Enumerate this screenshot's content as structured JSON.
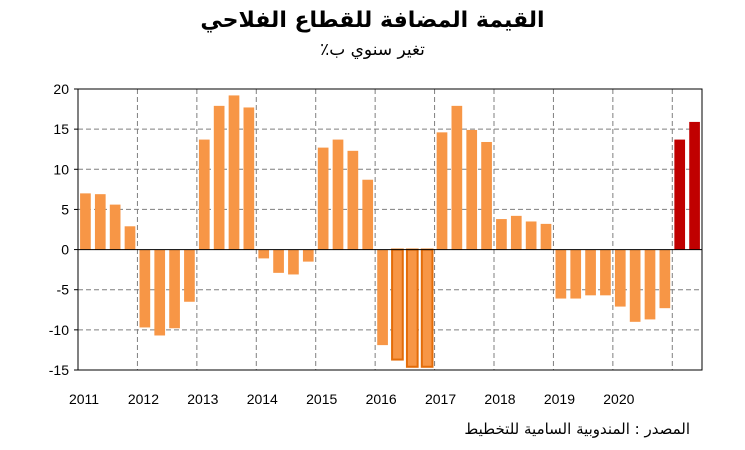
{
  "chart_data": {
    "type": "bar",
    "title": "القيمة المضافة للقطاع الفلاحي",
    "subtitle": "تغير سنوي ب٪",
    "source": "المصدر : المندوبية السامية للتخطيط",
    "x_tick_labels": [
      "2011",
      "2012",
      "2013",
      "2014",
      "2015",
      "2016",
      "2017",
      "2018",
      "2019",
      "2020"
    ],
    "y_ticks": [
      20,
      15,
      10,
      5,
      0,
      -5,
      -10,
      -15
    ],
    "ylim": [
      -15,
      20
    ],
    "grid": true,
    "colors": {
      "default": "#F79646",
      "highlight": "#C00000",
      "outlined_edge": "#E36C09"
    },
    "categories": [
      "2011 Q1",
      "2011 Q2",
      "2011 Q3",
      "2011 Q4",
      "2012 Q1",
      "2012 Q2",
      "2012 Q3",
      "2012 Q4",
      "2013 Q1",
      "2013 Q2",
      "2013 Q3",
      "2013 Q4",
      "2014 Q1",
      "2014 Q2",
      "2014 Q3",
      "2014 Q4",
      "2015 Q1",
      "2015 Q2",
      "2015 Q3",
      "2015 Q4",
      "2016 Q1",
      "2016 Q2",
      "2016 Q3",
      "2016 Q4",
      "2017 Q1",
      "2017 Q2",
      "2017 Q3",
      "2017 Q4",
      "2018 Q1",
      "2018 Q2",
      "2018 Q3",
      "2018 Q4",
      "2019 Q1",
      "2019 Q2",
      "2019 Q3",
      "2019 Q4",
      "2020 Q1",
      "2020 Q2",
      "2020 Q3",
      "2020 Q4",
      "2021 Q1",
      "2021 Q2"
    ],
    "values": [
      7.0,
      6.9,
      5.6,
      2.9,
      -9.7,
      -10.7,
      -9.8,
      -6.5,
      13.7,
      17.9,
      19.2,
      17.7,
      -1.1,
      -2.9,
      -3.1,
      -1.5,
      12.7,
      13.7,
      12.3,
      8.7,
      -11.9,
      -13.7,
      -14.6,
      -14.6,
      14.6,
      17.9,
      14.9,
      13.4,
      3.8,
      4.2,
      3.5,
      3.2,
      -6.1,
      -6.1,
      -5.7,
      -5.7,
      -7.1,
      -9.0,
      -8.7,
      -7.3,
      13.7,
      15.9
    ],
    "highlight_indices": [
      40,
      41
    ],
    "outlined_indices": [
      21,
      22,
      23
    ]
  }
}
